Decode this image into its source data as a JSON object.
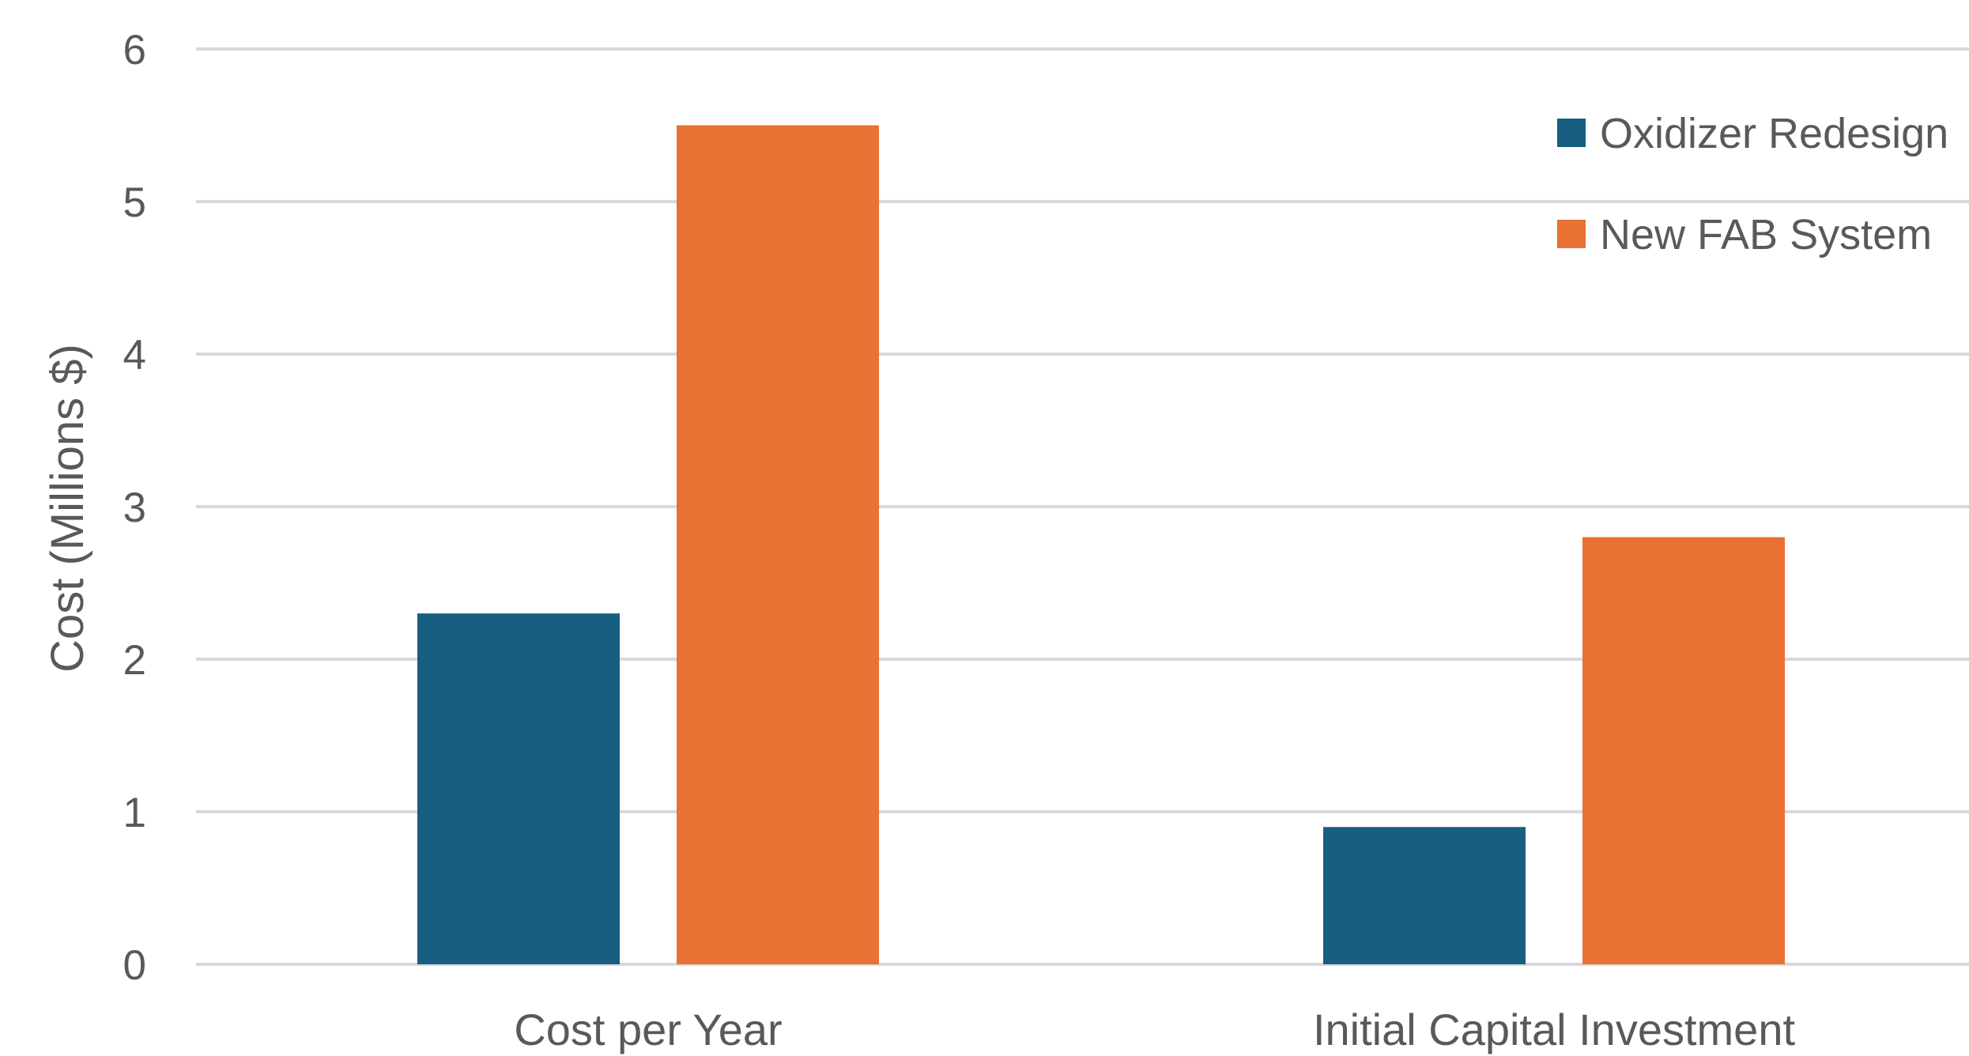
{
  "chart_data": {
    "type": "bar",
    "title": "",
    "xlabel": "",
    "ylabel": "Cost (Millions $)",
    "ylim": [
      0,
      6
    ],
    "yticks": [
      "0",
      "1",
      "2",
      "3",
      "4",
      "5",
      "6"
    ],
    "grid": true,
    "legend_position": "top-right",
    "categories": [
      "Cost per Year",
      "Initial Capital Investment"
    ],
    "series": [
      {
        "name": "Oxidizer Redesign",
        "color": "#175E80",
        "values": [
          2.3,
          0.9
        ]
      },
      {
        "name": "New FAB System",
        "color": "#E87133",
        "values": [
          5.5,
          2.8
        ]
      }
    ]
  }
}
